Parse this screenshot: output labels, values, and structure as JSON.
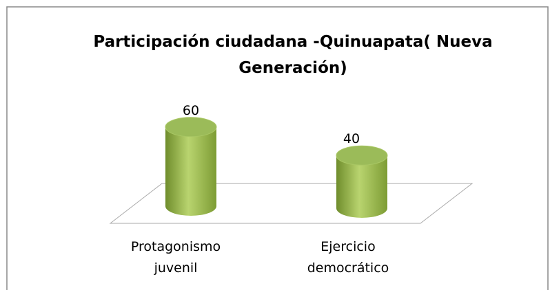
{
  "chart_data": {
    "type": "bar3d",
    "title": "Participación ciudadana -Quinuapata( Nueva Generación)",
    "categories": [
      "Protagonismo juvenil",
      "Ejercicio democrático"
    ],
    "values": [
      60,
      40
    ],
    "color": "#9bbb59"
  }
}
